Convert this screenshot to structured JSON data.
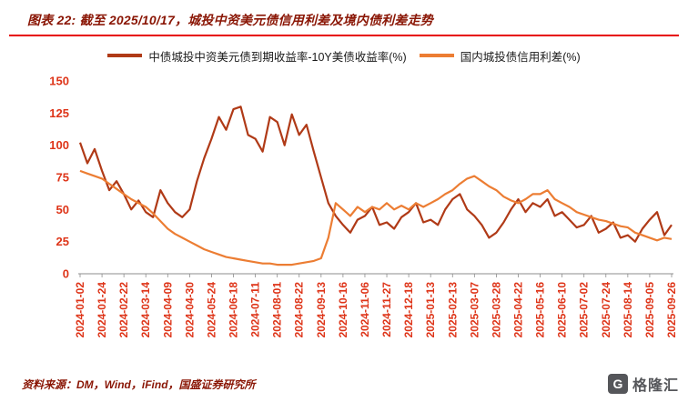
{
  "header": {
    "title": "图表 22: 截至 2025/10/17，城投中资美元债信用利差及境内债利差走势"
  },
  "colors": {
    "title_text": "#8A1605",
    "rule": "#E60000",
    "axis_tick_text": "#DE3418",
    "axis_line": "#8C8C8C",
    "legend_text": "#1A1A1A",
    "footer_text": "#8A1605",
    "logo_gray": "#55565A"
  },
  "footer": {
    "source": "资料来源：DM，Wind，iFind，国盛证券研究所"
  },
  "logo": {
    "glyph": "G",
    "text": "格隆汇"
  },
  "chart_data": {
    "type": "line",
    "title": "图表 22: 截至 2025/10/17，城投中资美元债信用利差及境内债利差走势",
    "xlabel": "",
    "ylabel": "",
    "ylim": [
      0,
      150
    ],
    "yticks": [
      0,
      25,
      50,
      75,
      100,
      125,
      150
    ],
    "grid": false,
    "legend_position": "top",
    "points_per_interval": 3,
    "categories": [
      "2024-01-02",
      "2024-01-24",
      "2024-02-22",
      "2024-03-14",
      "2024-04-09",
      "2024-04-30",
      "2024-05-24",
      "2024-06-18",
      "2024-07-11",
      "2024-08-01",
      "2024-08-22",
      "2024-09-13",
      "2024-10-16",
      "2024-11-06",
      "2024-11-27",
      "2024-12-18",
      "2025-01-13",
      "2025-02-13",
      "2025-03-07",
      "2025-03-28",
      "2025-04-22",
      "2025-05-16",
      "2025-06-10",
      "2025-07-02",
      "2025-07-24",
      "2025-08-14",
      "2025-09-05",
      "2025-09-26"
    ],
    "series": [
      {
        "name": "中债城投中资美元债到期收益率-10Y美债收益率(%)",
        "color": "#B03A17",
        "values": [
          102,
          86,
          97,
          80,
          65,
          72,
          62,
          50,
          57,
          48,
          44,
          65,
          55,
          48,
          44,
          50,
          72,
          90,
          105,
          122,
          112,
          128,
          130,
          108,
          105,
          95,
          122,
          118,
          100,
          124,
          108,
          116,
          95,
          75,
          55,
          45,
          38,
          32,
          42,
          45,
          52,
          38,
          40,
          35,
          44,
          48,
          55,
          40,
          42,
          38,
          50,
          58,
          62,
          50,
          45,
          38,
          28,
          32,
          40,
          50,
          58,
          48,
          55,
          52,
          58,
          45,
          48,
          42,
          36,
          38,
          45,
          32,
          35,
          40,
          28,
          30,
          25,
          35,
          42,
          48,
          30,
          38
        ]
      },
      {
        "name": "国内城投债信用利差(%)",
        "color": "#EC7D33",
        "values": [
          80,
          78,
          76,
          74,
          70,
          66,
          62,
          58,
          55,
          52,
          47,
          41,
          35,
          31,
          28,
          25,
          22,
          19,
          17,
          15,
          13,
          12,
          11,
          10,
          9,
          8,
          8,
          7,
          7,
          7,
          8,
          9,
          10,
          12,
          28,
          55,
          50,
          45,
          52,
          48,
          52,
          50,
          55,
          50,
          53,
          50,
          55,
          52,
          55,
          58,
          62,
          65,
          70,
          74,
          76,
          72,
          68,
          65,
          60,
          57,
          55,
          58,
          62,
          62,
          65,
          58,
          55,
          52,
          48,
          46,
          44,
          42,
          41,
          39,
          37,
          36,
          32,
          30,
          28,
          26,
          28,
          27
        ]
      }
    ]
  }
}
